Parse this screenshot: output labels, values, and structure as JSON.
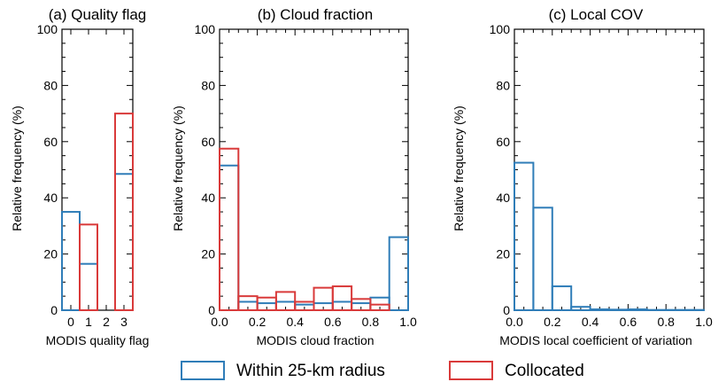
{
  "chart_data": [
    {
      "type": "bar",
      "title": "(a) Quality flag",
      "xlabel": "MODIS quality flag",
      "ylabel": "Relative frequency (%)",
      "categories": [
        "0",
        "1",
        "2",
        "3"
      ],
      "xlim": [
        -0.5,
        3.5
      ],
      "ylim": [
        0,
        100
      ],
      "yticks": [
        0,
        20,
        40,
        60,
        80,
        100
      ],
      "series": [
        {
          "name": "Within 25-km radius",
          "values": [
            35,
            16.5,
            0,
            48.5
          ]
        },
        {
          "name": "Collocated",
          "values": [
            0,
            30.5,
            0,
            70
          ]
        }
      ]
    },
    {
      "type": "bar",
      "title": "(b) Cloud fraction",
      "xlabel": "MODIS cloud fraction",
      "ylabel": "Relative frequency (%)",
      "bin_edges": [
        0.0,
        0.1,
        0.2,
        0.3,
        0.4,
        0.5,
        0.6,
        0.7,
        0.8,
        0.9,
        1.0
      ],
      "xlim": [
        0,
        1
      ],
      "ylim": [
        0,
        100
      ],
      "xticks": [
        "0.0",
        "0.2",
        "0.4",
        "0.6",
        "0.8",
        "1.0"
      ],
      "yticks": [
        0,
        20,
        40,
        60,
        80,
        100
      ],
      "series": [
        {
          "name": "Within 25-km radius",
          "values": [
            51.5,
            3,
            2.5,
            3,
            2,
            2.5,
            3,
            2.5,
            4.5,
            26
          ]
        },
        {
          "name": "Collocated",
          "values": [
            57.5,
            5,
            4.5,
            6.5,
            3,
            8,
            8.5,
            4,
            2,
            0
          ]
        }
      ]
    },
    {
      "type": "bar",
      "title": "(c) Local COV",
      "xlabel": "MODIS local coefficient of variation",
      "ylabel": "Relative frequency (%)",
      "bin_edges": [
        0.0,
        0.1,
        0.2,
        0.3,
        0.4,
        0.5,
        0.6,
        0.7,
        0.8,
        0.9,
        1.0
      ],
      "xlim": [
        0,
        1
      ],
      "ylim": [
        0,
        100
      ],
      "xticks": [
        "0.0",
        "0.2",
        "0.4",
        "0.6",
        "0.8",
        "1.0"
      ],
      "yticks": [
        0,
        20,
        40,
        60,
        80,
        100
      ],
      "series": [
        {
          "name": "Within 25-km radius",
          "values": [
            52.5,
            36.5,
            8.5,
            1.2,
            0.3,
            0.2,
            0.3,
            0.1,
            0.1,
            0.1
          ]
        }
      ]
    }
  ],
  "legend": {
    "placement": "bottom-center",
    "items": [
      {
        "label": "Within 25-km radius",
        "color": "#2f7db8"
      },
      {
        "label": "Collocated",
        "color": "#d93a3a"
      }
    ]
  },
  "colors": {
    "within": "#2f7db8",
    "collocated": "#d93a3a",
    "axis": "#000000"
  }
}
